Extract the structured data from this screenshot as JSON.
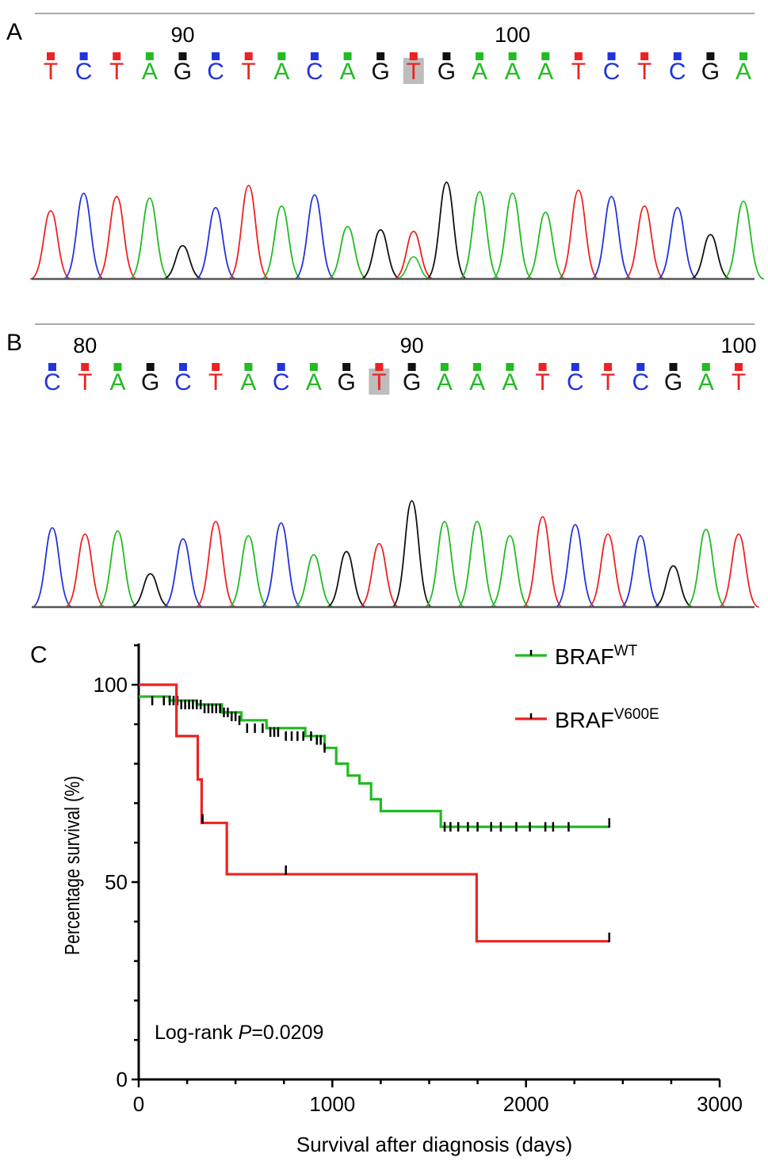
{
  "panels": {
    "A": {
      "label": "A",
      "position_labels": [
        {
          "text": "90",
          "index": 4
        },
        {
          "text": "100",
          "index": 14
        }
      ],
      "bases": [
        "T",
        "C",
        "T",
        "A",
        "G",
        "C",
        "T",
        "A",
        "C",
        "A",
        "G",
        "T",
        "G",
        "A",
        "A",
        "A",
        "T",
        "C",
        "T",
        "C",
        "G",
        "A"
      ],
      "highlight_index": 11
    },
    "B": {
      "label": "B",
      "position_labels": [
        {
          "text": "80",
          "index": 1
        },
        {
          "text": "90",
          "index": 11
        },
        {
          "text": "100",
          "index": 21
        }
      ],
      "bases": [
        "C",
        "T",
        "A",
        "G",
        "C",
        "T",
        "A",
        "C",
        "A",
        "G",
        "T",
        "G",
        "A",
        "A",
        "A",
        "T",
        "C",
        "T",
        "C",
        "G",
        "A",
        "T"
      ],
      "highlight_index": 10
    },
    "C": {
      "label": "C",
      "annotation_prefix": "Log-rank ",
      "annotation_p": "P",
      "annotation_value": "=0.0209"
    }
  },
  "base_colors": {
    "A": "#22bb22",
    "C": "#2233dd",
    "G": "#111111",
    "T": "#ee2222"
  },
  "chart_data": {
    "type": "line",
    "subtype": "kaplan-meier step",
    "xlabel": "Survival after diagnosis (days)",
    "ylabel": "Percentage survival (%)",
    "xlim": [
      0,
      3000
    ],
    "ylim": [
      0,
      100
    ],
    "xticks": [
      "0",
      "1000",
      "2000",
      "3000"
    ],
    "yticks": [
      "0",
      "50",
      "100"
    ],
    "legend_position": "top-right",
    "series": [
      {
        "name_base": "BRAF",
        "name_sup": "WT",
        "color": "#22bb22",
        "steps": [
          [
            0,
            97
          ],
          [
            160,
            96
          ],
          [
            300,
            95
          ],
          [
            430,
            93
          ],
          [
            530,
            91
          ],
          [
            660,
            89
          ],
          [
            860,
            87
          ],
          [
            960,
            84
          ],
          [
            1020,
            80
          ],
          [
            1080,
            77
          ],
          [
            1140,
            75
          ],
          [
            1200,
            71
          ],
          [
            1250,
            68
          ],
          [
            1560,
            64
          ],
          [
            2430,
            64
          ]
        ],
        "censored": [
          [
            70,
            96
          ],
          [
            130,
            96
          ],
          [
            160,
            96
          ],
          [
            180,
            96
          ],
          [
            200,
            96
          ],
          [
            220,
            95
          ],
          [
            240,
            95
          ],
          [
            260,
            95
          ],
          [
            280,
            95
          ],
          [
            300,
            95
          ],
          [
            320,
            95
          ],
          [
            340,
            94
          ],
          [
            360,
            94
          ],
          [
            380,
            94
          ],
          [
            400,
            94
          ],
          [
            420,
            94
          ],
          [
            440,
            93
          ],
          [
            460,
            93
          ],
          [
            480,
            92
          ],
          [
            500,
            92
          ],
          [
            520,
            91
          ],
          [
            560,
            89
          ],
          [
            600,
            89
          ],
          [
            640,
            89
          ],
          [
            680,
            88
          ],
          [
            700,
            88
          ],
          [
            720,
            88
          ],
          [
            760,
            87
          ],
          [
            790,
            87
          ],
          [
            820,
            87
          ],
          [
            850,
            87
          ],
          [
            890,
            87
          ],
          [
            920,
            86
          ],
          [
            940,
            86
          ],
          [
            960,
            84
          ],
          [
            1580,
            64
          ],
          [
            1610,
            64
          ],
          [
            1650,
            64
          ],
          [
            1700,
            64
          ],
          [
            1750,
            64
          ],
          [
            1820,
            64
          ],
          [
            1870,
            64
          ],
          [
            1950,
            64
          ],
          [
            2020,
            64
          ],
          [
            2100,
            64
          ],
          [
            2140,
            64
          ],
          [
            2220,
            64
          ],
          [
            2430,
            65
          ]
        ]
      },
      {
        "name_base": "BRAF",
        "name_sup": "V600E",
        "color": "#ee2222",
        "steps": [
          [
            0,
            100
          ],
          [
            180,
            100
          ],
          [
            195,
            87
          ],
          [
            290,
            87
          ],
          [
            305,
            76
          ],
          [
            325,
            65
          ],
          [
            440,
            65
          ],
          [
            455,
            52
          ],
          [
            1730,
            52
          ],
          [
            1745,
            35
          ],
          [
            2430,
            35
          ]
        ],
        "censored": [
          [
            330,
            66
          ],
          [
            760,
            53
          ],
          [
            2430,
            36
          ]
        ]
      }
    ]
  }
}
